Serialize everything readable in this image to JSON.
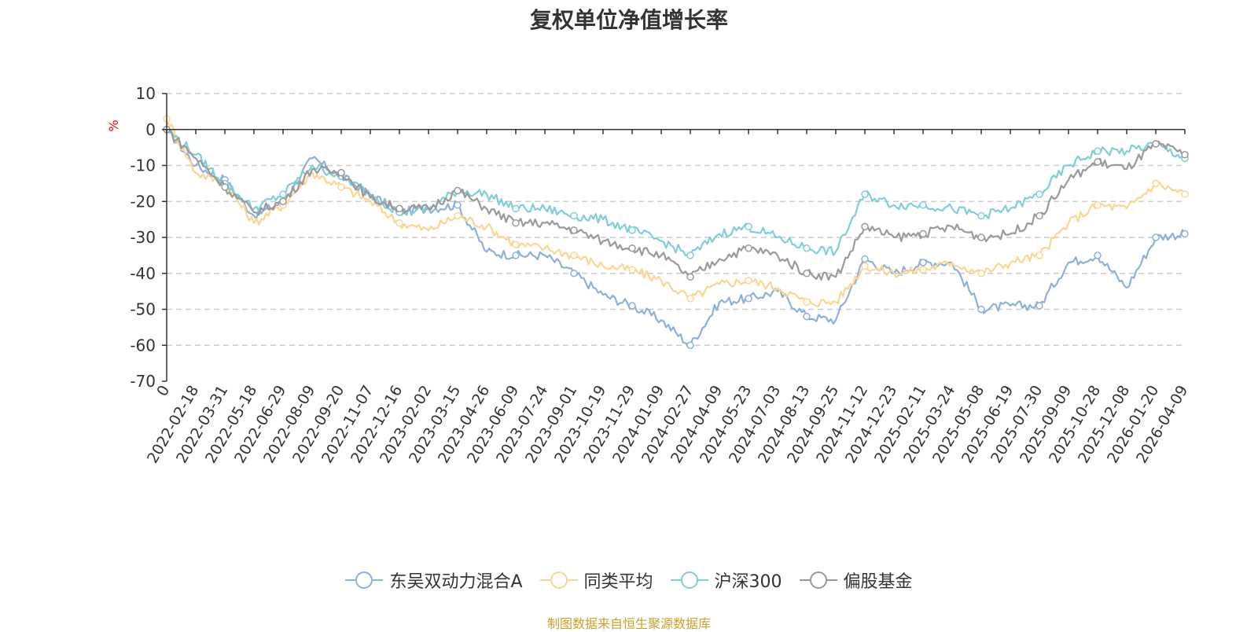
{
  "chart_data": {
    "type": "line",
    "title": "复权单位净值增长率",
    "ylabel": "%",
    "ylim": [
      -70,
      10
    ],
    "yticks": [
      10,
      0,
      -10,
      -20,
      -30,
      -40,
      -50,
      -60,
      -70
    ],
    "x_ticks": [
      "0",
      "2022-02-18",
      "2022-03-31",
      "2022-05-18",
      "2022-06-29",
      "2022-08-09",
      "2022-09-20",
      "2022-11-07",
      "2022-12-16",
      "2023-02-02",
      "2023-03-15",
      "2023-04-26",
      "2023-06-09",
      "2023-07-24",
      "2023-09-01",
      "2023-10-19",
      "2023-11-29",
      "2024-01-09",
      "2024-02-27",
      "2024-04-09",
      "2024-05-23",
      "2024-07-03",
      "2024-08-13",
      "2024-09-25",
      "2024-11-12",
      "2024-12-23",
      "2025-02-11",
      "2025-03-24",
      "2025-05-08",
      "2025-06-19",
      "2025-07-30",
      "2025-09-09",
      "2025-10-28",
      "2025-12-08",
      "2026-01-20",
      "2026-04-09"
    ],
    "series": [
      {
        "name": "东吴双动力混合A",
        "color": "#8eb0dc",
        "values": [
          0,
          -10,
          -14,
          -24,
          -20,
          -8,
          -13,
          -18,
          -23,
          -22,
          -21,
          -34,
          -35,
          -35,
          -40,
          -46,
          -49,
          -53,
          -60,
          -48,
          -47,
          -45,
          -52,
          -53,
          -36,
          -40,
          -37,
          -37,
          -50,
          -49,
          -49,
          -37,
          -35,
          -44,
          -30,
          -29
        ]
      },
      {
        "name": "同类平均",
        "color": "#fcd68f",
        "values": [
          3,
          -12,
          -15,
          -26,
          -21,
          -12,
          -16,
          -20,
          -26,
          -28,
          -24,
          -27,
          -32,
          -33,
          -35,
          -38,
          -39,
          -42,
          -47,
          -43,
          -42,
          -44,
          -48,
          -48,
          -38,
          -40,
          -39,
          -37,
          -40,
          -37,
          -35,
          -26,
          -21,
          -22,
          -15,
          -18
        ]
      },
      {
        "name": "沪深300",
        "color": "#7ecfd6",
        "values": [
          0,
          -7,
          -15,
          -22,
          -18,
          -10,
          -13,
          -18,
          -23,
          -22,
          -17,
          -18,
          -22,
          -22,
          -24,
          -25,
          -28,
          -31,
          -35,
          -29,
          -27,
          -30,
          -33,
          -34,
          -18,
          -21,
          -21,
          -22,
          -24,
          -22,
          -18,
          -10,
          -6,
          -6,
          -4,
          -8
        ]
      },
      {
        "name": "偏股基金",
        "color": "#9a9a9a",
        "values": [
          0,
          -8,
          -16,
          -23,
          -20,
          -11,
          -12,
          -19,
          -22,
          -22,
          -17,
          -22,
          -26,
          -26,
          -28,
          -31,
          -33,
          -35,
          -41,
          -36,
          -33,
          -35,
          -40,
          -41,
          -27,
          -30,
          -29,
          -27,
          -30,
          -29,
          -24,
          -14,
          -9,
          -11,
          -4,
          -7
        ]
      }
    ]
  },
  "legend": [
    {
      "label": "东吴双动力混合A",
      "color": "#8eb0dc"
    },
    {
      "label": "同类平均",
      "color": "#fcd68f"
    },
    {
      "label": "沪深300",
      "color": "#7ecfd6"
    },
    {
      "label": "偏股基金",
      "color": "#9a9a9a"
    }
  ],
  "source": "制图数据来自恒生聚源数据库"
}
